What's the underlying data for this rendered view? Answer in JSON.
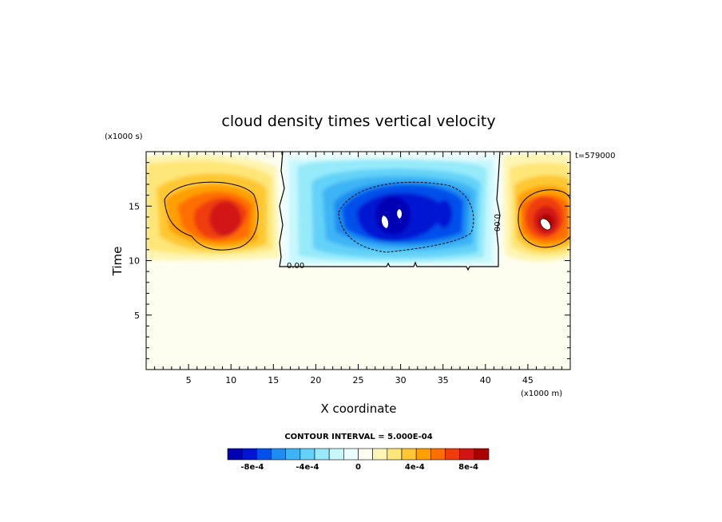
{
  "chart_data": {
    "type": "heatmap",
    "title": "cloud density times vertical velocity",
    "xlabel": "X coordinate",
    "ylabel": "Time",
    "x_units": "(x1000 m)",
    "y_units": "(x1000 s)",
    "time_stamp": "t=579000",
    "xlim": [
      0,
      50
    ],
    "ylim": [
      0,
      20
    ],
    "xticks": [
      "5",
      "10",
      "15",
      "20",
      "25",
      "30",
      "35",
      "40",
      "45"
    ],
    "yticks": [
      "5",
      "10",
      "15"
    ],
    "contour_interval_text": "CONTOUR INTERVAL = 5.000E-04",
    "zero_contour_label": "0.00",
    "colorbar": {
      "labels": [
        "-8e-4",
        "-4e-4",
        "0",
        "4e-4",
        "8e-4"
      ],
      "colors": [
        "#0000b4",
        "#0014d2",
        "#0050eb",
        "#1e8cf0",
        "#3cb4f5",
        "#64d2f8",
        "#96eafa",
        "#c8f8fc",
        "#ebfefe",
        "#fefef0",
        "#fff5b4",
        "#ffe678",
        "#ffc832",
        "#ffa000",
        "#ff6e00",
        "#f03c0a",
        "#d21414",
        "#aa0000"
      ]
    },
    "features": [
      {
        "name": "positive-left",
        "x": 9.5,
        "y": 14,
        "peak": 0.0009
      },
      {
        "name": "negative-center",
        "x": 29,
        "y": 14,
        "peak": -0.001
      },
      {
        "name": "positive-right",
        "x": 47,
        "y": 13.5,
        "peak": 0.0011
      }
    ]
  }
}
